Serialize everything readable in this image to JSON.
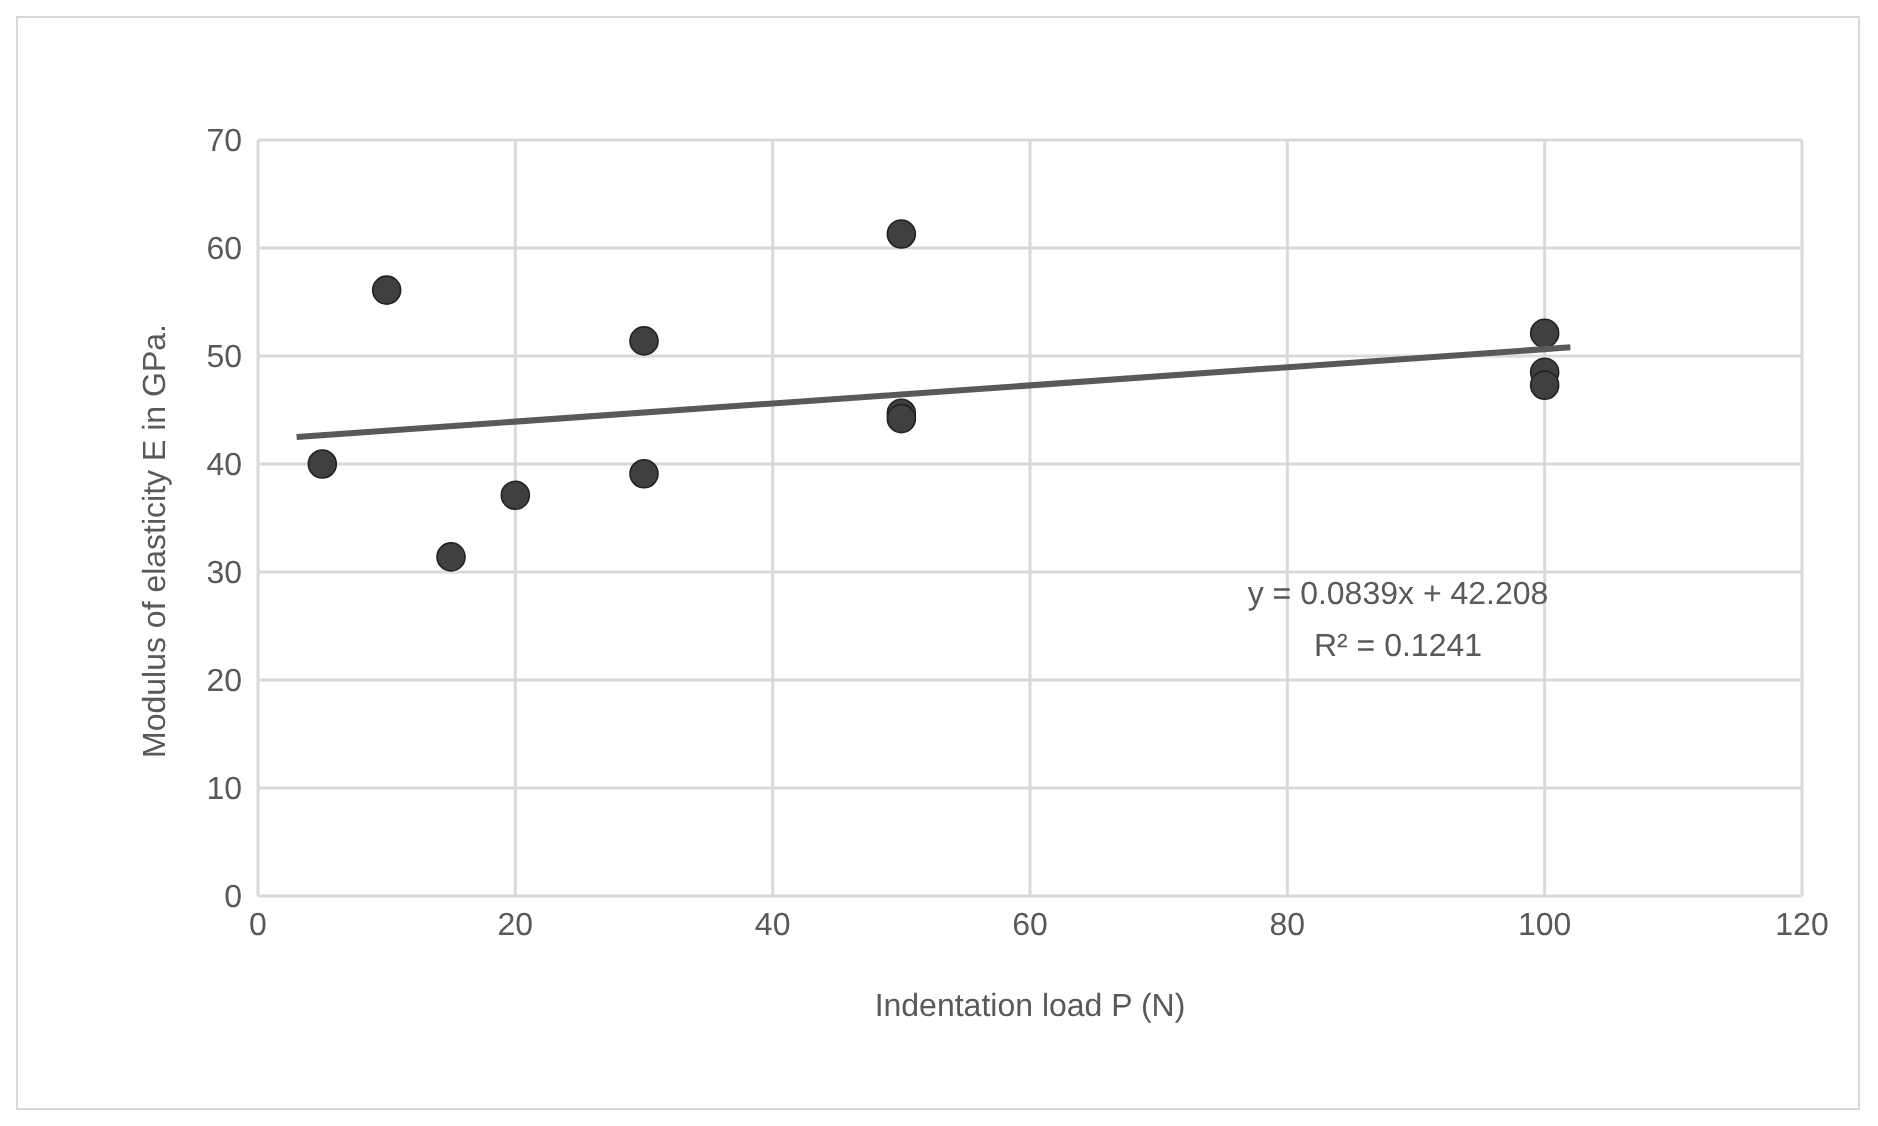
{
  "chart_data": {
    "type": "scatter",
    "xlabel": "Indentation load P (N)",
    "ylabel": "Modulus of elasticity E in GPa.",
    "xlim": [
      0,
      120
    ],
    "xticks": [
      0,
      20,
      40,
      60,
      80,
      100,
      120
    ],
    "ylim": [
      0,
      70
    ],
    "yticks": [
      0,
      10,
      20,
      30,
      40,
      50,
      60,
      70
    ],
    "grid": true,
    "marker": "circle",
    "series": [
      {
        "color": "#404040",
        "x": [
          5,
          10,
          15,
          20,
          30,
          30,
          50,
          50,
          50,
          100,
          100,
          100
        ],
        "values": [
          40.0,
          56.1,
          31.4,
          37.1,
          51.4,
          39.1,
          61.3,
          44.7,
          44.2,
          52.1,
          48.5,
          47.3
        ]
      },
      {
        "type": "line",
        "color": "#595959",
        "marker": "none",
        "x": [
          3,
          102
        ],
        "values": [
          42.5,
          50.8
        ]
      }
    ],
    "annotations": [
      "y = 0.0839x + 42.208",
      "R² = 0.1241"
    ]
  }
}
